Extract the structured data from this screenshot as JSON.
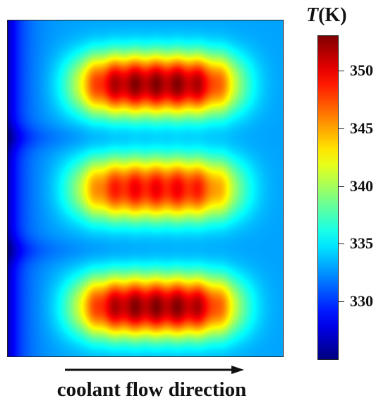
{
  "chart_data": {
    "type": "heatmap",
    "colorbar": {
      "title_symbol": "T",
      "title_unit": "(K)",
      "ticks": [
        330,
        335,
        340,
        345,
        350
      ],
      "range": [
        325,
        353
      ],
      "colormap": "jet"
    },
    "xlabel": "coolant flow direction",
    "field": {
      "base_temperature": 333,
      "coolant_inlet_side": "left",
      "hot_zones": [
        {
          "name": "top",
          "peak": 353
        },
        {
          "name": "middle",
          "peak": 350
        },
        {
          "name": "bottom",
          "peak": 353
        }
      ]
    }
  }
}
